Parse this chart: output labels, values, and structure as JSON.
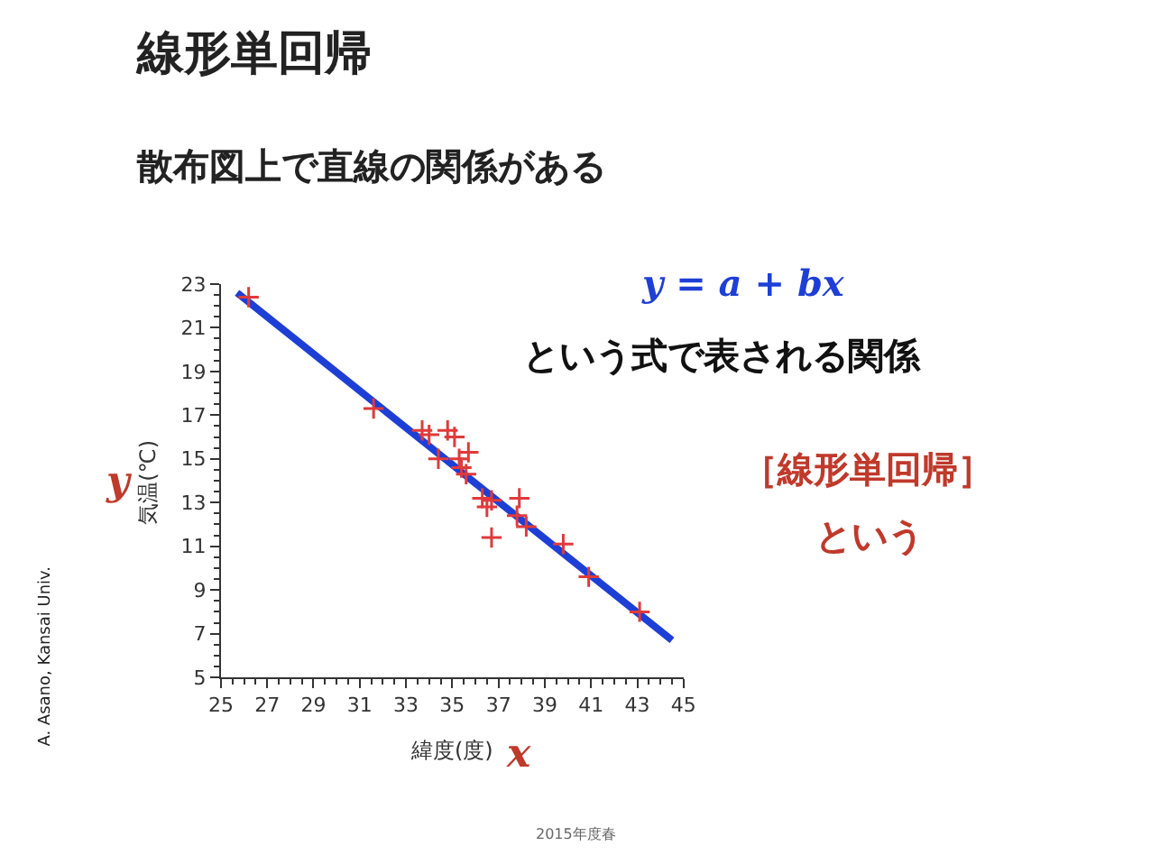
{
  "chart_data": {
    "type": "scatter",
    "title": "線形単回帰",
    "subtitle": "散布図上で直線の関係がある",
    "xlabel": "緯度(度)",
    "ylabel": "気温(℃)",
    "annotations": [
      "y = a + bx",
      "という式で表される関係",
      "［線形単回帰］",
      "という",
      "y",
      "x",
      "A. Asano, Kansai Univ.",
      "2015年度春"
    ],
    "series": [
      {
        "color": "#e03a3a",
        "marker": "cross",
        "x": [
          26.2,
          31.6,
          33.7,
          34.0,
          34.4,
          34.8,
          35.1,
          35.3,
          35.7,
          35.4,
          35.6,
          36.3,
          36.5,
          36.7,
          36.7,
          37.9,
          37.8,
          38.2,
          39.8,
          40.9,
          43.1
        ],
        "values": [
          22.4,
          17.3,
          16.3,
          16.1,
          15.0,
          16.3,
          16.0,
          15.0,
          15.3,
          14.6,
          14.3,
          13.2,
          12.8,
          13.1,
          11.4,
          13.2,
          12.4,
          11.9,
          11.1,
          9.6,
          8.0
        ]
      },
      {
        "type": "line",
        "color": "#1d3fd6",
        "line_style": "solid",
        "x": [
          25.7,
          44.5
        ],
        "values": [
          22.6,
          6.7
        ]
      }
    ],
    "xlim": [
      25,
      45
    ],
    "xticks": [
      25,
      27,
      29,
      31,
      33,
      35,
      37,
      39,
      41,
      43,
      45
    ],
    "ylim": [
      5,
      23
    ],
    "yticks": [
      5,
      7,
      9,
      11,
      13,
      15,
      17,
      19,
      21,
      23
    ]
  }
}
